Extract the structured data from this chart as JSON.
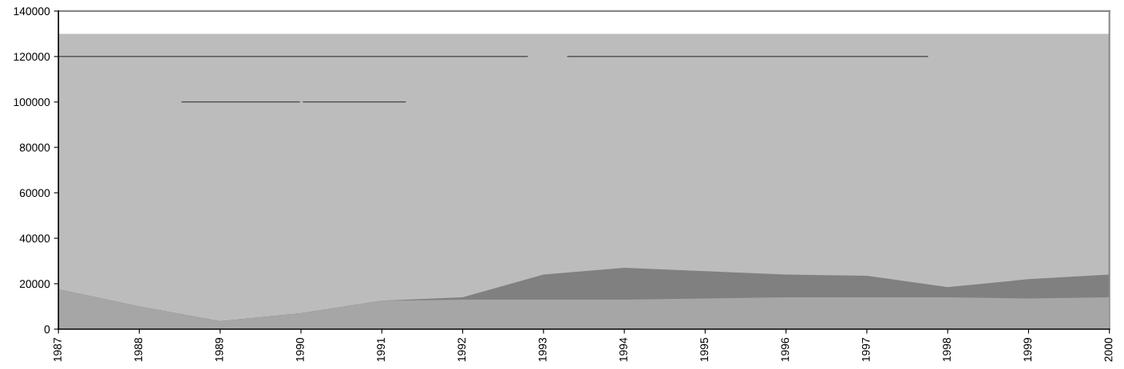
{
  "chart_data": {
    "type": "area",
    "x": [
      1987,
      1988,
      1989,
      1990,
      1991,
      1992,
      1993,
      1994,
      1995,
      1996,
      1997,
      1998,
      1999,
      2000
    ],
    "series": [
      {
        "color": "#808080",
        "values": [
          17500,
          10000,
          3500,
          7000,
          12500,
          14000,
          24000,
          27000,
          25500,
          24000,
          23500,
          18500,
          22000,
          24000
        ]
      },
      {
        "color": "#a6a6a6",
        "values": [
          17500,
          10000,
          3500,
          7000,
          12500,
          13000,
          13000,
          13000,
          13500,
          14000,
          14000,
          14000,
          13500,
          14000
        ]
      },
      {
        "type": "line",
        "color": "#404040",
        "x": [
          1987,
          1992.8,
          null,
          1993.3,
          1997.75
        ],
        "values": [
          120000,
          120000,
          null,
          120000,
          120000
        ]
      },
      {
        "type": "line",
        "color": "#404040",
        "x": [
          1988.53,
          1989.98,
          null,
          1990.03,
          1991.29
        ],
        "values": [
          100000,
          100000,
          null,
          100000,
          100000
        ]
      }
    ],
    "bands": [
      {
        "axis": "y",
        "from": 0,
        "to": 130000,
        "color": "#bcbcbc"
      }
    ],
    "xlim": [
      1987,
      2000
    ],
    "xticks": [
      1987,
      1988,
      1989,
      1990,
      1991,
      1992,
      1993,
      1994,
      1995,
      1996,
      1997,
      1998,
      1999,
      2000
    ],
    "ylim": [
      0,
      140000
    ],
    "yticks": [
      0,
      20000,
      40000,
      60000,
      80000,
      100000,
      120000,
      140000
    ],
    "grid": false
  }
}
